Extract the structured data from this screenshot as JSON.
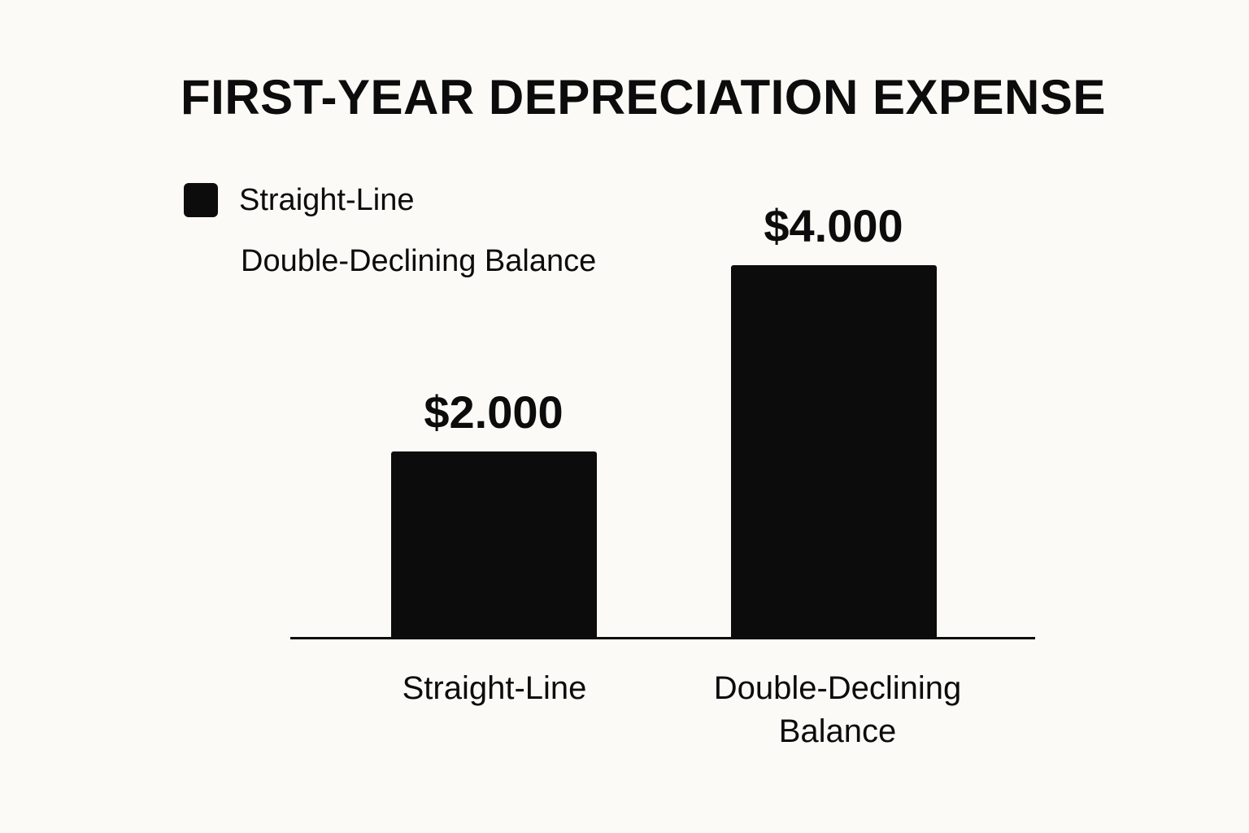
{
  "chart_data": {
    "type": "bar",
    "title": "FIRST-YEAR DEPRECIATION EXPENSE",
    "categories": [
      "Straight-Line",
      "Double-Declining Balance"
    ],
    "category_label_lines": [
      [
        "Straight-Line"
      ],
      [
        "Double-Declining",
        "Balance"
      ]
    ],
    "values": [
      2000,
      4000
    ],
    "value_labels": [
      "$2.000",
      "$4.000"
    ],
    "xlabel": "",
    "ylabel": "",
    "ylim": [
      0,
      4000
    ],
    "grid": false,
    "legend": {
      "position": "top-left",
      "entries": [
        {
          "label": "Straight-Line",
          "swatch": true
        },
        {
          "label": "Double-Declining Balance",
          "swatch": false
        }
      ]
    },
    "colors": {
      "bars": "#0C0C0C",
      "background": "#FBFAF6",
      "text": "#0C0C0C"
    }
  }
}
